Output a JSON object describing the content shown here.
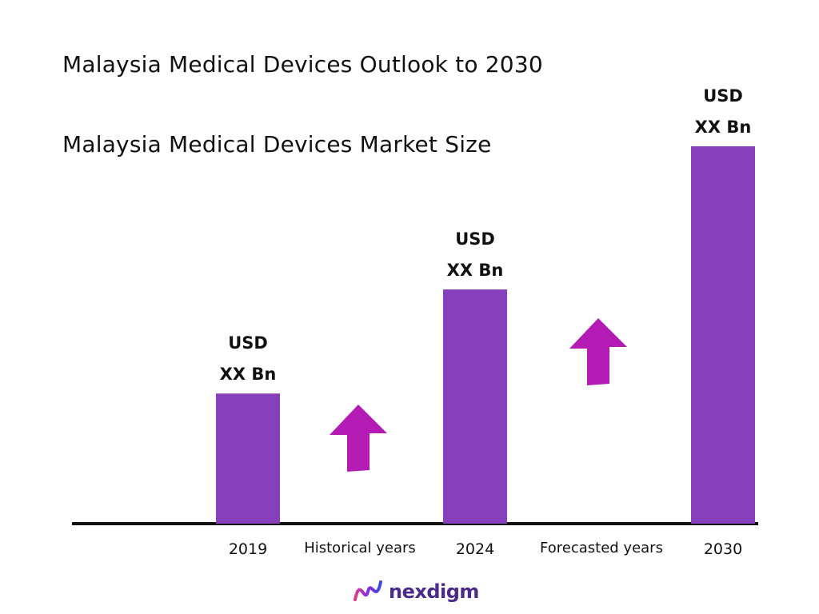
{
  "titles": {
    "main": "Malaysia Medical Devices Outlook to 2030",
    "sub": "Malaysia Medical Devices Market Size"
  },
  "colors": {
    "bar": "#8640bb",
    "arrow": "#b21cb5",
    "axis": "#111111",
    "text": "#111111",
    "brand": "#4b2a8c"
  },
  "chart_data": {
    "type": "bar",
    "categories": [
      "2019",
      "2024",
      "2030"
    ],
    "values": [
      1.0,
      1.8,
      2.9
    ],
    "value_labels": [
      [
        "USD",
        "XX Bn"
      ],
      [
        "USD",
        "XX Bn"
      ],
      [
        "USD",
        "XX Bn"
      ]
    ],
    "period_labels": [
      "Historical years",
      "Forecasted years"
    ],
    "ylim": [
      0,
      2.9
    ],
    "grid": false,
    "legend": "none",
    "trend_arrows": [
      "up",
      "up"
    ]
  },
  "logo": {
    "icon": "nexdigm-wave-icon",
    "text": "nexdigm"
  }
}
